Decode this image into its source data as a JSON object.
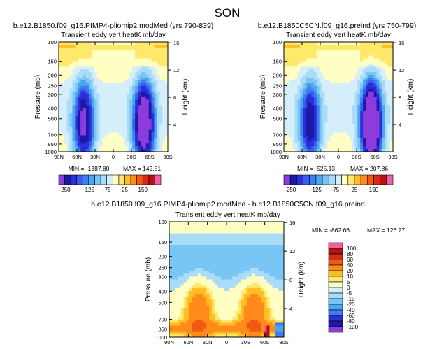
{
  "title": "SON",
  "chart_data": [
    {
      "type": "heatmap",
      "id": "top-left",
      "case_title": "b.e12.B1850.f09_g16.PIMP4-pliomip2.modMed (yrs 790-839)",
      "subtitle": "Transient eddy vert heatK  mb/day",
      "ylabel": "Pressure (mb)",
      "y2label": "Height (km)",
      "x_ticks": [
        "90N",
        "60N",
        "30N",
        "0",
        "30S",
        "60S",
        "90S"
      ],
      "y_ticks": [
        "100",
        "150",
        "200",
        "250",
        "300",
        "400",
        "500",
        "700",
        "850",
        "1000"
      ],
      "y2_ticks": [
        "16",
        "12",
        "8",
        "4"
      ],
      "ylim": [
        1000,
        100
      ],
      "min_label": "MIN = -1387.80",
      "max_label": "MAX = 142.51",
      "colorbar_labels": [
        "-250",
        "-125",
        "-75",
        "25",
        "150"
      ],
      "levels": [
        -250,
        -200,
        -150,
        -125,
        -100,
        -75,
        -50,
        -25,
        -10,
        10,
        25,
        50,
        75,
        100,
        125,
        150,
        200
      ],
      "colors": [
        "#8d3bdc",
        "#1a1aa8",
        "#2d2dd8",
        "#3a5cf0",
        "#3d7fee",
        "#4aa6ee",
        "#79c6f6",
        "#a9dcf8",
        "#d4eefa",
        "#ffffc4",
        "#ffe86b",
        "#ffbd26",
        "#ff8b1a",
        "#f25a14",
        "#d82a16",
        "#b01414",
        "#ee5fa8"
      ]
    },
    {
      "type": "heatmap",
      "id": "top-right",
      "case_title": "b.e12.B1850C5CN.f09_g16.preind (yrs 750-799)",
      "subtitle": "Transient eddy vert heatK  mb/day",
      "ylabel": "Pressure (mb)",
      "y2label": "Height (km)",
      "x_ticks": [
        "90N",
        "60N",
        "30N",
        "0",
        "30S",
        "60S",
        "90S"
      ],
      "y_ticks": [
        "100",
        "150",
        "200",
        "250",
        "300",
        "400",
        "500",
        "700",
        "850",
        "1000"
      ],
      "y2_ticks": [
        "16",
        "12",
        "8",
        "4"
      ],
      "ylim": [
        1000,
        100
      ],
      "min_label": "MIN = -525.13",
      "max_label": "MAX = 207.86",
      "colorbar_labels": [
        "-250",
        "-125",
        "-75",
        "25",
        "150"
      ]
    },
    {
      "type": "heatmap",
      "id": "bottom-diff",
      "case_title": "b.e12.B1850.f09_g16.PIMP4-pliomip2.modMed - b.e12.B1850C5CN.f09_g16.preind",
      "subtitle": "Transient eddy vert heatK  mb/day",
      "ylabel": "Pressure (mb)",
      "y2label": "Height (km)",
      "x_ticks": [
        "90N",
        "60N",
        "30N",
        "0",
        "30S",
        "60S",
        "90S"
      ],
      "y_ticks": [
        "100",
        "150",
        "200",
        "250",
        "300",
        "400",
        "500",
        "700",
        "850",
        "1000"
      ],
      "y2_ticks": [
        "16",
        "12",
        "8",
        "4"
      ],
      "ylim": [
        1000,
        100
      ],
      "min_label": "MIN = -862.66",
      "max_label": "MAX = 126.27",
      "colorbar_labels": [
        "100",
        "80",
        "60",
        "40",
        "20",
        "10",
        "5",
        "0",
        "-5",
        "-10",
        "-20",
        "-40",
        "-60",
        "-80",
        "-100"
      ],
      "colors": [
        "#ee5fa8",
        "#b01414",
        "#d82a16",
        "#f25a14",
        "#ff8b1a",
        "#ffbd26",
        "#ffe86b",
        "#ffffc4",
        "#d4eefa",
        "#a9dcf8",
        "#79c6f6",
        "#4aa6ee",
        "#3d7fee",
        "#2d2dd8",
        "#1a1aa8",
        "#8d3bdc"
      ]
    }
  ]
}
